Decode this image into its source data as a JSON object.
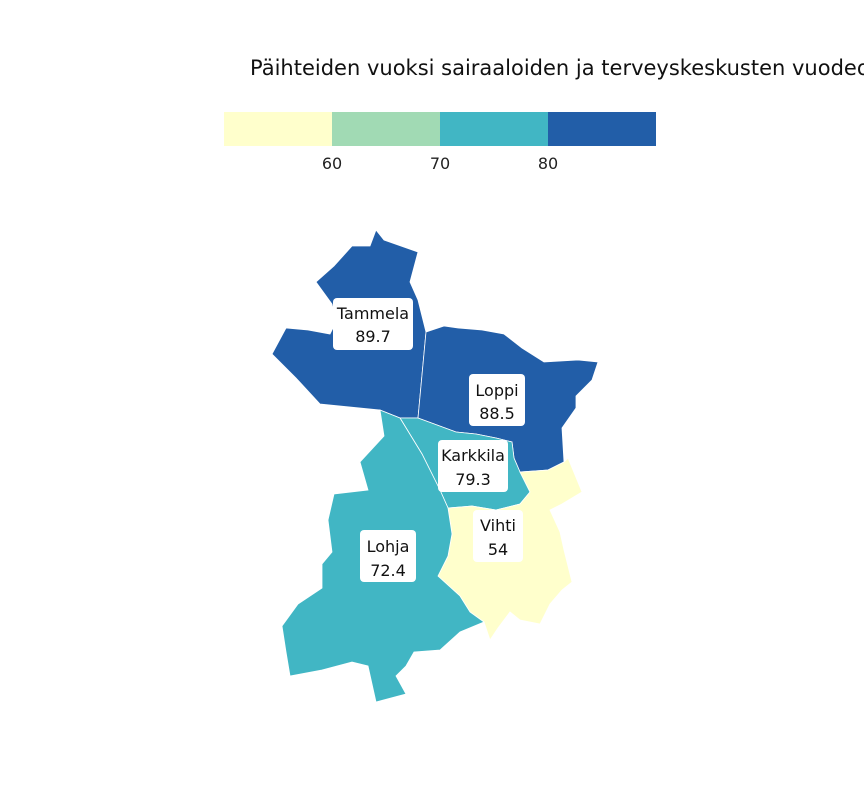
{
  "map": {
    "title": "Päihteiden vuoksi sairaaloiden ja terveyskeskusten vuodeos",
    "legend": {
      "colors": [
        "#ffffcc",
        "#a1dab4",
        "#41b6c4",
        "#225ea8"
      ],
      "ticks": [
        "60",
        "70",
        "80"
      ]
    },
    "regions": [
      {
        "name": "Tammela",
        "value": "89.7",
        "color": "#225ea8"
      },
      {
        "name": "Loppi",
        "value": "88.5",
        "color": "#225ea8"
      },
      {
        "name": "Karkkila",
        "value": "79.3",
        "color": "#41b6c4"
      },
      {
        "name": "Lohja",
        "value": "72.4",
        "color": "#41b6c4"
      },
      {
        "name": "Vihti",
        "value": "54",
        "color": "#ffffcc"
      }
    ]
  }
}
